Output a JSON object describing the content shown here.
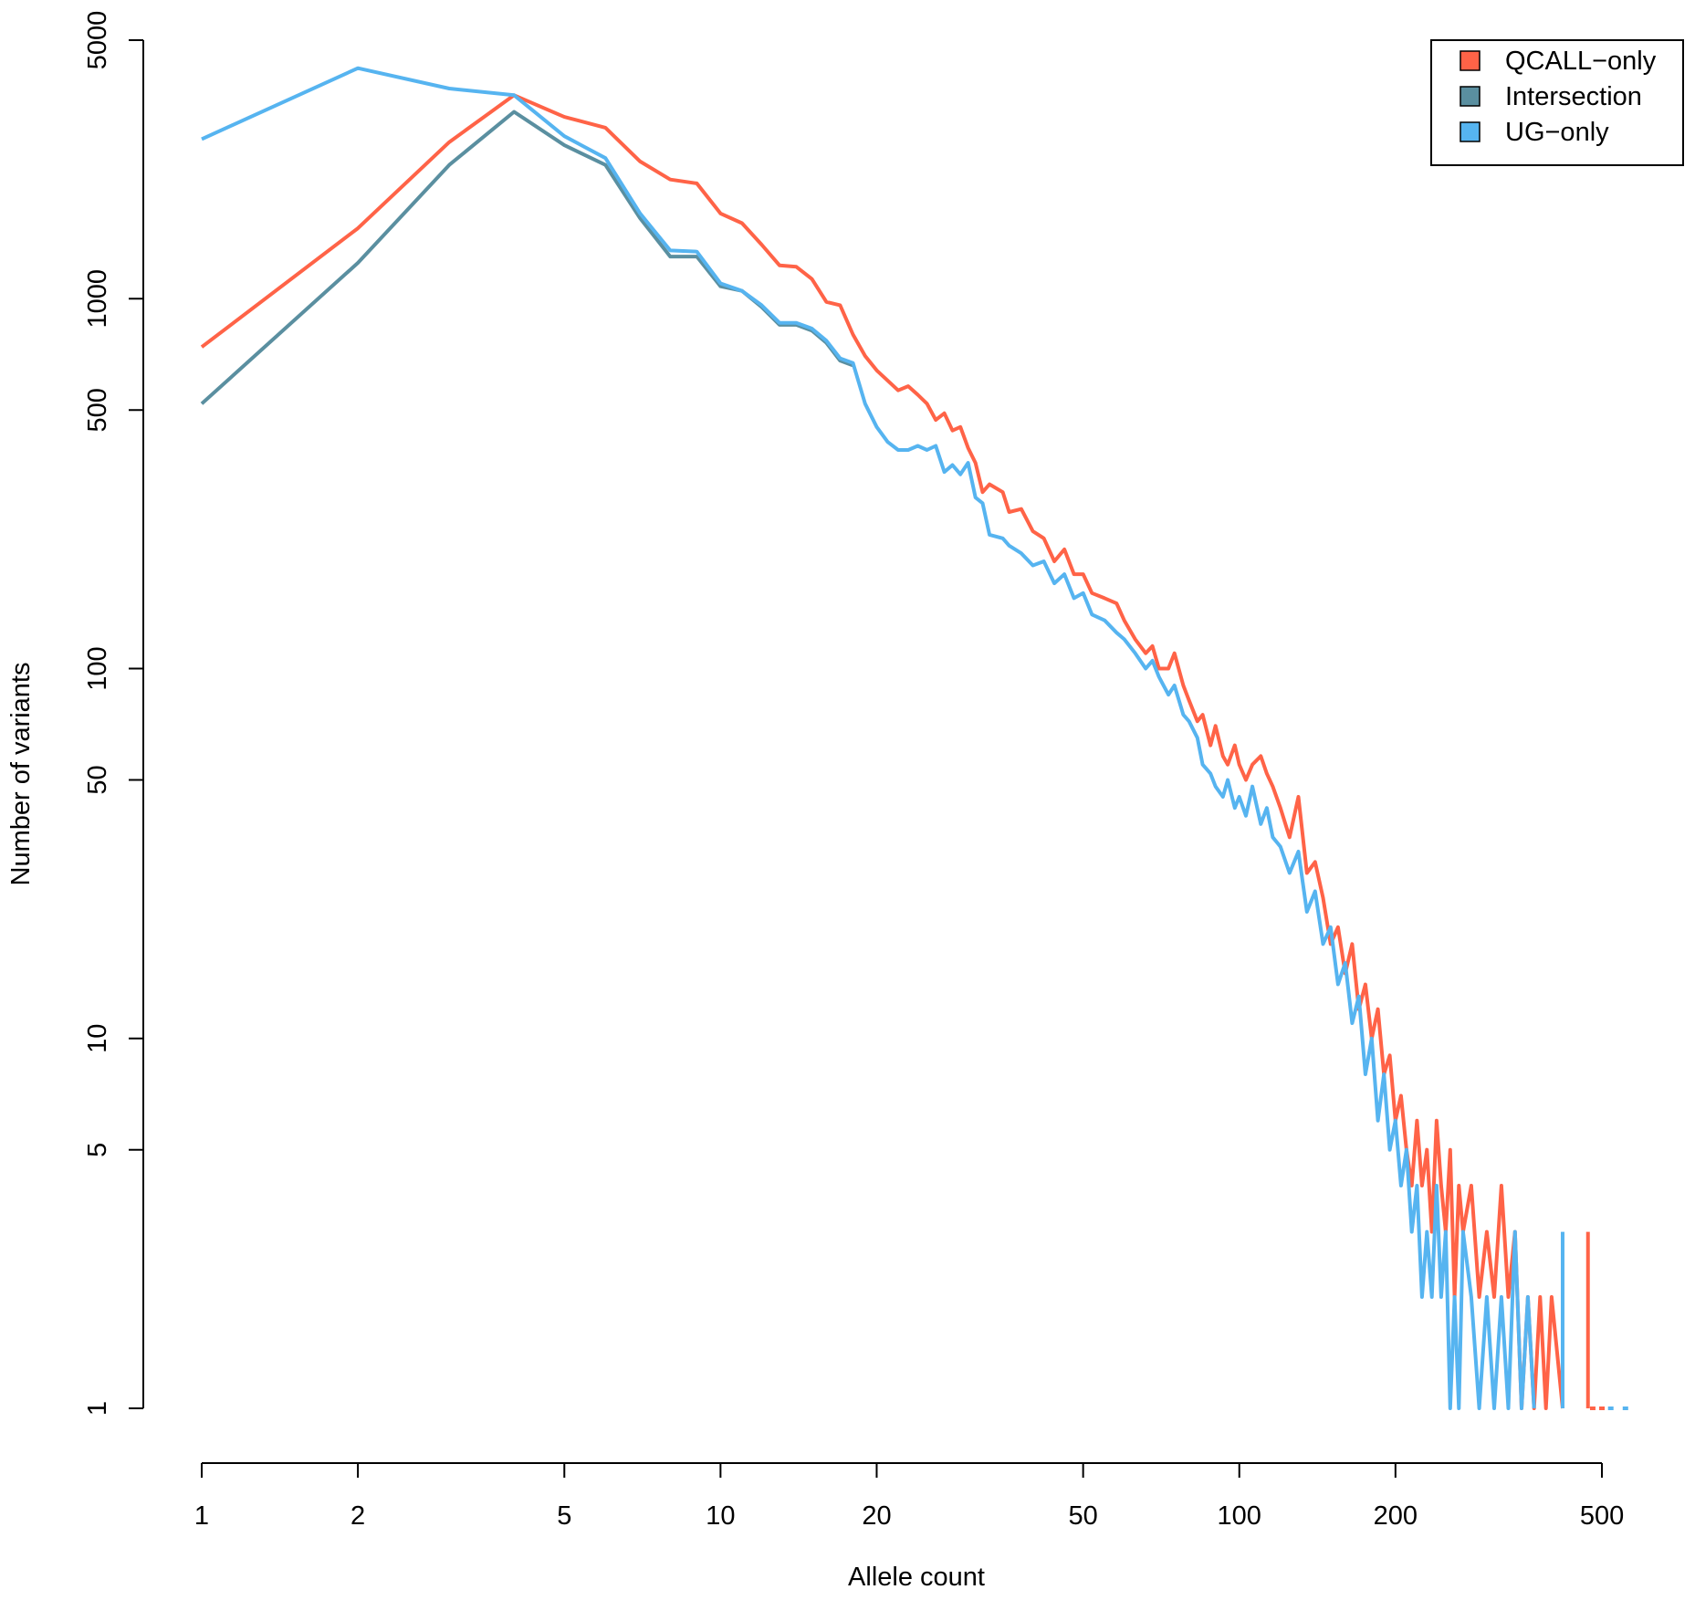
{
  "chart_data": {
    "type": "line",
    "xlabel": "Allele count",
    "ylabel": "Number of variants",
    "x_scale": "log",
    "y_scale": "log",
    "xlim": [
      1,
      560
    ],
    "ylim": [
      1,
      5000
    ],
    "x_ticks": [
      1,
      2,
      5,
      10,
      20,
      50,
      100,
      200,
      500
    ],
    "x_tick_labels": [
      "1",
      "2",
      "5",
      "10",
      "20",
      "50",
      "100",
      "200",
      "500"
    ],
    "y_ticks": [
      1,
      5,
      10,
      50,
      100,
      500,
      1000,
      5000
    ],
    "y_tick_labels": [
      "1",
      "5",
      "10",
      "50",
      "100",
      "500",
      "1000",
      "5000"
    ],
    "grid": false,
    "legend_position": "top-right",
    "series": [
      {
        "name": "QCALL−only",
        "color": "#ff6347",
        "points": [
          [
            1,
            740
          ],
          [
            2,
            1550
          ],
          [
            3,
            2650
          ],
          [
            4,
            3550
          ],
          [
            5,
            3100
          ],
          [
            6,
            2900
          ],
          [
            7,
            2350
          ],
          [
            8,
            2100
          ],
          [
            9,
            2050
          ],
          [
            10,
            1700
          ],
          [
            11,
            1600
          ],
          [
            12,
            1400
          ],
          [
            13,
            1230
          ],
          [
            14,
            1220
          ],
          [
            15,
            1130
          ],
          [
            16,
            980
          ],
          [
            17,
            960
          ],
          [
            18,
            800
          ],
          [
            19,
            700
          ],
          [
            20,
            640
          ],
          [
            22,
            565
          ],
          [
            23,
            580
          ],
          [
            24,
            550
          ],
          [
            25,
            520
          ],
          [
            26,
            470
          ],
          [
            27,
            490
          ],
          [
            28,
            440
          ],
          [
            29,
            450
          ],
          [
            30,
            395
          ],
          [
            31,
            360
          ],
          [
            32,
            300
          ],
          [
            33,
            315
          ],
          [
            35,
            300
          ],
          [
            36,
            265
          ],
          [
            38,
            270
          ],
          [
            40,
            235
          ],
          [
            42,
            225
          ],
          [
            44,
            195
          ],
          [
            46,
            210
          ],
          [
            48,
            180
          ],
          [
            50,
            180
          ],
          [
            52,
            160
          ],
          [
            55,
            155
          ],
          [
            58,
            150
          ],
          [
            60,
            135
          ],
          [
            63,
            120
          ],
          [
            66,
            110
          ],
          [
            68,
            115
          ],
          [
            70,
            100
          ],
          [
            73,
            100
          ],
          [
            75,
            110
          ],
          [
            78,
            90
          ],
          [
            80,
            82
          ],
          [
            83,
            72
          ],
          [
            85,
            75
          ],
          [
            88,
            62
          ],
          [
            90,
            70
          ],
          [
            93,
            58
          ],
          [
            95,
            55
          ],
          [
            98,
            62
          ],
          [
            100,
            55
          ],
          [
            103,
            50
          ],
          [
            106,
            55
          ],
          [
            110,
            58
          ],
          [
            113,
            52
          ],
          [
            116,
            48
          ],
          [
            120,
            42
          ],
          [
            125,
            35
          ],
          [
            130,
            45
          ],
          [
            135,
            28
          ],
          [
            140,
            30
          ],
          [
            145,
            24
          ],
          [
            150,
            18
          ],
          [
            155,
            20
          ],
          [
            160,
            15
          ],
          [
            165,
            18
          ],
          [
            170,
            12
          ],
          [
            175,
            14
          ],
          [
            180,
            10
          ],
          [
            185,
            12
          ],
          [
            190,
            8
          ],
          [
            195,
            9
          ],
          [
            200,
            6
          ],
          [
            205,
            7
          ],
          [
            210,
            5
          ],
          [
            215,
            4
          ],
          [
            220,
            6
          ],
          [
            225,
            4
          ],
          [
            230,
            5
          ],
          [
            235,
            3
          ],
          [
            240,
            6
          ],
          [
            245,
            4
          ],
          [
            250,
            3
          ],
          [
            255,
            5
          ],
          [
            260,
            2
          ],
          [
            265,
            4
          ],
          [
            270,
            3
          ],
          [
            280,
            4
          ],
          [
            290,
            2
          ],
          [
            300,
            3
          ],
          [
            310,
            2
          ],
          [
            320,
            4
          ],
          [
            330,
            2
          ],
          [
            340,
            3
          ],
          [
            350,
            1
          ],
          [
            360,
            2
          ],
          [
            370,
            1
          ],
          [
            380,
            2
          ],
          [
            390,
            1
          ],
          [
            400,
            2
          ],
          [
            420,
            1
          ]
        ]
      },
      {
        "name": "Intersection",
        "color": "#5a8fa0",
        "points": [
          [
            1,
            520
          ],
          [
            2,
            1250
          ],
          [
            3,
            2300
          ],
          [
            4,
            3200
          ],
          [
            5,
            2600
          ],
          [
            6,
            2300
          ],
          [
            7,
            1650
          ],
          [
            8,
            1300
          ],
          [
            9,
            1300
          ],
          [
            10,
            1080
          ],
          [
            11,
            1050
          ],
          [
            12,
            950
          ],
          [
            13,
            850
          ],
          [
            14,
            850
          ],
          [
            15,
            820
          ],
          [
            16,
            760
          ],
          [
            17,
            680
          ],
          [
            18,
            660
          ]
        ]
      },
      {
        "name": "UG−only",
        "color": "#56b4f0",
        "points": [
          [
            1,
            2700
          ],
          [
            2,
            4200
          ],
          [
            3,
            3700
          ],
          [
            4,
            3550
          ],
          [
            5,
            2750
          ],
          [
            6,
            2400
          ],
          [
            7,
            1700
          ],
          [
            8,
            1350
          ],
          [
            9,
            1340
          ],
          [
            10,
            1100
          ],
          [
            11,
            1050
          ],
          [
            12,
            960
          ],
          [
            13,
            860
          ],
          [
            14,
            860
          ],
          [
            15,
            830
          ],
          [
            16,
            770
          ],
          [
            17,
            690
          ],
          [
            18,
            670
          ],
          [
            19,
            520
          ],
          [
            20,
            450
          ],
          [
            21,
            410
          ],
          [
            22,
            390
          ],
          [
            23,
            390
          ],
          [
            24,
            400
          ],
          [
            25,
            390
          ],
          [
            26,
            400
          ],
          [
            27,
            340
          ],
          [
            28,
            355
          ],
          [
            29,
            335
          ],
          [
            30,
            360
          ],
          [
            31,
            290
          ],
          [
            32,
            280
          ],
          [
            33,
            230
          ],
          [
            35,
            225
          ],
          [
            36,
            215
          ],
          [
            38,
            205
          ],
          [
            40,
            190
          ],
          [
            42,
            195
          ],
          [
            44,
            170
          ],
          [
            46,
            180
          ],
          [
            48,
            155
          ],
          [
            50,
            160
          ],
          [
            52,
            140
          ],
          [
            55,
            135
          ],
          [
            58,
            125
          ],
          [
            60,
            120
          ],
          [
            63,
            110
          ],
          [
            66,
            100
          ],
          [
            68,
            105
          ],
          [
            70,
            95
          ],
          [
            73,
            85
          ],
          [
            75,
            90
          ],
          [
            78,
            75
          ],
          [
            80,
            72
          ],
          [
            83,
            65
          ],
          [
            85,
            55
          ],
          [
            88,
            52
          ],
          [
            90,
            48
          ],
          [
            93,
            45
          ],
          [
            95,
            50
          ],
          [
            98,
            42
          ],
          [
            100,
            45
          ],
          [
            103,
            40
          ],
          [
            106,
            48
          ],
          [
            110,
            38
          ],
          [
            113,
            42
          ],
          [
            116,
            35
          ],
          [
            120,
            33
          ],
          [
            125,
            28
          ],
          [
            130,
            32
          ],
          [
            135,
            22
          ],
          [
            140,
            25
          ],
          [
            145,
            18
          ],
          [
            150,
            20
          ],
          [
            155,
            14
          ],
          [
            160,
            16
          ],
          [
            165,
            11
          ],
          [
            170,
            13
          ],
          [
            175,
            8
          ],
          [
            180,
            10
          ],
          [
            185,
            6
          ],
          [
            190,
            8
          ],
          [
            195,
            5
          ],
          [
            200,
            6
          ],
          [
            205,
            4
          ],
          [
            210,
            5
          ],
          [
            215,
            3
          ],
          [
            220,
            4
          ],
          [
            225,
            2
          ],
          [
            230,
            3
          ],
          [
            235,
            2
          ],
          [
            240,
            4
          ],
          [
            245,
            2
          ],
          [
            250,
            3
          ],
          [
            255,
            1
          ],
          [
            260,
            2
          ],
          [
            265,
            1
          ],
          [
            270,
            3
          ],
          [
            280,
            2
          ],
          [
            290,
            1
          ],
          [
            300,
            2
          ],
          [
            310,
            1
          ],
          [
            320,
            2
          ],
          [
            330,
            1
          ],
          [
            340,
            3
          ],
          [
            350,
            1
          ],
          [
            360,
            2
          ],
          [
            370,
            1
          ]
        ]
      }
    ],
    "sparse_points": [
      {
        "series": 0,
        "x": 480,
        "y": 1
      },
      {
        "series": 0,
        "x": 500,
        "y": 1
      },
      {
        "series": 0,
        "x": 470,
        "y": 3
      },
      {
        "series": 2,
        "x": 555,
        "y": 1
      },
      {
        "series": 2,
        "x": 420,
        "y": 3
      },
      {
        "series": 2,
        "x": 520,
        "y": 1
      }
    ]
  }
}
